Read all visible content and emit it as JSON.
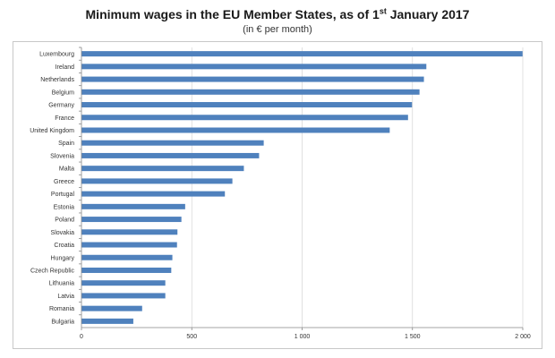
{
  "title": {
    "main": "Minimum wages in the EU Member States, as of 1",
    "superscript": "st",
    "suffix": " January 2017",
    "subtitle": "(in € per month)"
  },
  "chart_data": {
    "type": "bar",
    "orientation": "horizontal",
    "title": "Minimum wages in the EU Member States, as of 1st January 2017",
    "subtitle": "(in € per month)",
    "categories": [
      "Luxembourg",
      "Ireland",
      "Netherlands",
      "Belgium",
      "Germany",
      "France",
      "United Kingdom",
      "Spain",
      "Slovenia",
      "Malta",
      "Greece",
      "Portugal",
      "Estonia",
      "Poland",
      "Slovakia",
      "Croatia",
      "Hungary",
      "Czech Republic",
      "Lithuania",
      "Latvia",
      "Romania",
      "Bulgaria"
    ],
    "values": [
      1999,
      1563,
      1552,
      1532,
      1498,
      1480,
      1397,
      826,
      805,
      736,
      684,
      650,
      470,
      453,
      435,
      433,
      412,
      407,
      380,
      380,
      275,
      235
    ],
    "xlim": [
      0,
      2000
    ],
    "xticks": [
      0,
      500,
      1000,
      1500,
      2000
    ],
    "xtick_labels": [
      "0",
      "500",
      "1 000",
      "1 500",
      "2 000"
    ],
    "xgrid": true,
    "bar_color": "#4f81bd",
    "grid_color": "#d9d9d9"
  }
}
